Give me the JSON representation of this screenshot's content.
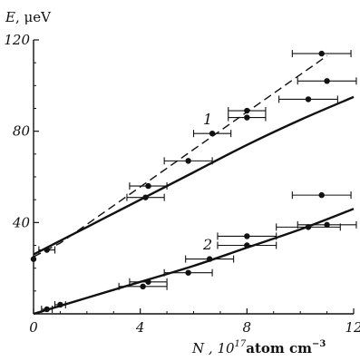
{
  "chart_data": {
    "type": "scatter",
    "title": "",
    "ylabel": {
      "symbol": "E",
      "sep": ", ",
      "unit": "μeV"
    },
    "xlabel": {
      "symbol": "N",
      "sep": " , ",
      "base": "10",
      "exp": "17",
      "unit": "atom cm",
      "unit_exp": "−3"
    },
    "xlim": [
      0,
      12
    ],
    "ylim": [
      0,
      120
    ],
    "x_ticks": [
      0,
      4,
      8,
      12
    ],
    "x_tick_labels": [
      "0",
      "4",
      "8",
      "12"
    ],
    "y_ticks": [
      40,
      80,
      120
    ],
    "y_tick_labels": [
      "40",
      "80",
      "120"
    ],
    "grid": false,
    "curve_labels": [
      "1",
      "2"
    ],
    "series": [
      {
        "points": [
          {
            "x": 0.0,
            "y": 24,
            "xerr": 0.0
          },
          {
            "x": 0.5,
            "y": 28,
            "xerr": 0.3
          },
          {
            "x": 4.2,
            "y": 51,
            "xerr": 0.7
          },
          {
            "x": 4.3,
            "y": 56,
            "xerr": 0.7
          },
          {
            "x": 5.8,
            "y": 67,
            "xerr": 0.9
          },
          {
            "x": 6.7,
            "y": 79,
            "xerr": 0.7
          },
          {
            "x": 8.0,
            "y": 86,
            "xerr": 0.7
          },
          {
            "x": 8.0,
            "y": 89,
            "xerr": 0.7
          },
          {
            "x": 10.3,
            "y": 94,
            "xerr": 1.1
          },
          {
            "x": 10.8,
            "y": 114,
            "xerr": 1.1
          },
          {
            "x": 11.0,
            "y": 102,
            "xerr": 1.1
          }
        ],
        "fit_solid": [
          [
            0,
            26
          ],
          [
            2,
            38
          ],
          [
            4,
            50
          ],
          [
            6,
            62
          ],
          [
            8,
            74
          ],
          [
            10,
            85
          ],
          [
            12,
            95
          ]
        ],
        "fit_dashed": [
          [
            0,
            25
          ],
          [
            1,
            31
          ],
          [
            11,
            113
          ]
        ]
      },
      {
        "points": [
          {
            "x": 0.5,
            "y": 2,
            "xerr": 0.2
          },
          {
            "x": 1.0,
            "y": 4,
            "xerr": 0.2
          },
          {
            "x": 4.1,
            "y": 12,
            "xerr": 0.9
          },
          {
            "x": 4.3,
            "y": 14,
            "xerr": 0.7
          },
          {
            "x": 5.8,
            "y": 18,
            "xerr": 0.9
          },
          {
            "x": 6.6,
            "y": 24,
            "xerr": 0.9
          },
          {
            "x": 8.0,
            "y": 30,
            "xerr": 1.1
          },
          {
            "x": 8.0,
            "y": 34,
            "xerr": 1.1
          },
          {
            "x": 10.3,
            "y": 38,
            "xerr": 1.2
          },
          {
            "x": 10.8,
            "y": 52,
            "xerr": 1.1
          },
          {
            "x": 11.0,
            "y": 39,
            "xerr": 1.1
          }
        ],
        "fit_solid": [
          [
            0,
            0
          ],
          [
            2,
            7
          ],
          [
            4,
            14
          ],
          [
            6,
            21
          ],
          [
            8,
            29
          ],
          [
            10,
            37
          ],
          [
            12,
            46
          ]
        ]
      }
    ]
  }
}
